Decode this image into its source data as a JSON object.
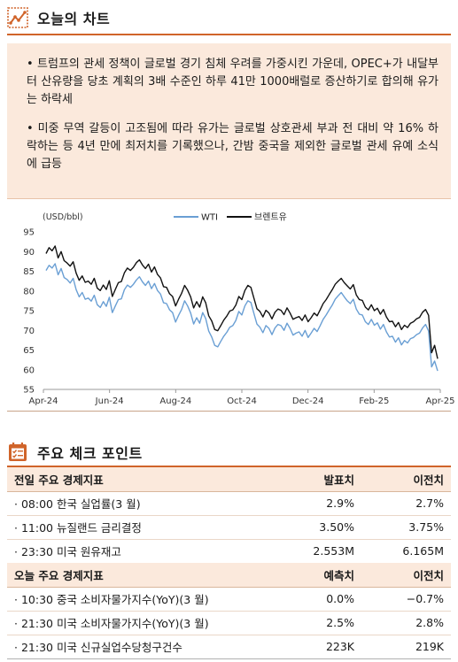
{
  "chart_section": {
    "title": "오늘의 차트",
    "icon": "line-chart-icon"
  },
  "summary": {
    "bullets": [
      "• 트럼프의 관세 정책이 글로벌 경기 침체 우려를 가중시킨 가운데, OPEC+가 내달부터 산유량을 당초 계획의 3배 수준인 하루 41만 1000배럴로 증산하기로 합의해 유가는 하락세",
      "• 미중 무역 갈등이 고조됨에 따라 유가는 글로벌 상호관세 부과 전 대비 약 16% 하락하는 등 4년 만에 최저치를 기록했으나, 간밤 중국을 제외한 글로벌 관세 유예 소식에 급등"
    ]
  },
  "chart_data": {
    "type": "line",
    "ylabel": "(USD/bbl)",
    "ylim": [
      55,
      95
    ],
    "yticks": [
      "95",
      "90",
      "85",
      "80",
      "75",
      "70",
      "65",
      "60",
      "55"
    ],
    "xticks": [
      "Apr-24",
      "Jun-24",
      "Aug-24",
      "Oct-24",
      "Dec-24",
      "Feb-25",
      "Apr-25"
    ],
    "legend_position": "top-center",
    "series": [
      {
        "name": "WTI",
        "color": "#6a9fd4",
        "values": [
          85.2,
          86.5,
          85.8,
          86.9,
          84.1,
          85.7,
          83.4,
          82.9,
          82.0,
          83.2,
          80.3,
          78.5,
          79.6,
          77.9,
          78.2,
          77.4,
          78.9,
          76.5,
          75.8,
          77.3,
          76.1,
          78.4,
          74.5,
          76.2,
          77.8,
          78.0,
          80.3,
          81.5,
          80.9,
          81.7,
          82.8,
          83.6,
          82.3,
          81.4,
          82.5,
          80.6,
          81.9,
          80.1,
          79.2,
          77.0,
          76.8,
          75.2,
          74.5,
          72.1,
          73.8,
          75.3,
          77.5,
          76.2,
          74.4,
          71.6,
          73.2,
          71.8,
          74.5,
          73.0,
          69.8,
          68.3,
          66.2,
          65.8,
          67.2,
          68.5,
          69.5,
          70.8,
          71.2,
          72.5,
          74.8,
          73.9,
          76.2,
          77.5,
          77.1,
          74.3,
          71.6,
          70.8,
          69.4,
          71.2,
          70.5,
          68.9,
          70.6,
          71.5,
          71.2,
          70.0,
          71.8,
          70.5,
          68.8,
          69.3,
          69.6,
          68.5,
          70.0,
          68.2,
          69.3,
          70.5,
          69.7,
          71.2,
          72.8,
          73.9,
          75.2,
          76.4,
          77.9,
          78.8,
          79.6,
          78.5,
          77.5,
          76.8,
          77.9,
          75.4,
          74.1,
          73.9,
          72.2,
          71.5,
          72.8,
          71.3,
          71.9,
          70.3,
          71.5,
          69.6,
          68.3,
          68.5,
          67.0,
          68.1,
          66.3,
          67.4,
          66.8,
          67.9,
          68.2,
          68.9,
          69.3,
          70.6,
          71.5,
          69.8,
          60.7,
          62.2,
          59.7
        ]
      },
      {
        "name": "브렌트유",
        "color": "#111111",
        "values": [
          89.5,
          91.0,
          90.2,
          91.4,
          88.4,
          90.0,
          87.7,
          87.1,
          86.3,
          87.4,
          84.5,
          82.7,
          83.8,
          82.2,
          82.5,
          81.7,
          83.2,
          80.7,
          80.1,
          81.5,
          80.4,
          82.6,
          78.6,
          80.4,
          82.1,
          82.4,
          84.6,
          85.8,
          85.2,
          86.0,
          87.2,
          87.9,
          86.6,
          85.7,
          86.8,
          84.8,
          86.1,
          84.2,
          83.3,
          81.1,
          80.9,
          79.3,
          78.6,
          76.2,
          77.9,
          79.4,
          81.4,
          80.2,
          78.5,
          75.7,
          77.3,
          75.9,
          78.5,
          77.0,
          73.7,
          72.4,
          70.2,
          69.9,
          71.2,
          72.6,
          73.6,
          74.9,
          75.2,
          76.4,
          78.6,
          77.8,
          80.1,
          81.4,
          80.9,
          78.2,
          75.5,
          74.8,
          73.4,
          75.1,
          74.4,
          72.9,
          74.6,
          75.4,
          75.1,
          74.0,
          75.7,
          74.4,
          72.8,
          73.2,
          73.5,
          72.5,
          73.9,
          72.2,
          73.2,
          74.4,
          73.7,
          75.2,
          76.8,
          77.8,
          79.1,
          80.3,
          81.7,
          82.5,
          83.2,
          82.1,
          81.3,
          80.5,
          81.6,
          79.0,
          77.8,
          77.6,
          75.9,
          75.2,
          76.5,
          75.0,
          75.6,
          74.1,
          75.3,
          73.4,
          72.2,
          72.3,
          70.9,
          72.0,
          70.2,
          71.3,
          70.7,
          71.8,
          72.2,
          72.9,
          73.3,
          74.6,
          75.3,
          73.8,
          64.3,
          66.2,
          62.8
        ]
      }
    ]
  },
  "check_section": {
    "title": "주요 체크 포인트",
    "icon": "checklist-icon"
  },
  "prev_day": {
    "headers": [
      "전일 주요 경제지표",
      "발표치",
      "이전치"
    ],
    "rows": [
      {
        "name": "· 08:00 한국 실업률(3 월)",
        "a": "2.9%",
        "b": "2.7%"
      },
      {
        "name": "· 11:00 뉴질랜드 금리결정",
        "a": "3.50%",
        "b": "3.75%"
      },
      {
        "name": "· 23:30 미국 원유재고",
        "a": "2.553M",
        "b": "6.165M"
      }
    ]
  },
  "today": {
    "headers": [
      "오늘 주요 경제지표",
      "예측치",
      "이전치"
    ],
    "rows": [
      {
        "name": "· 10:30 중국 소비자물가지수(YoY)(3 월)",
        "a": "0.0%",
        "b": "−0.7%"
      },
      {
        "name": "· 21:30 미국 소비자물가지수(YoY)(3 월)",
        "a": "2.5%",
        "b": "2.8%"
      },
      {
        "name": "· 21:30 미국 신규실업수당청구건수",
        "a": "223K",
        "b": "219K"
      }
    ]
  }
}
